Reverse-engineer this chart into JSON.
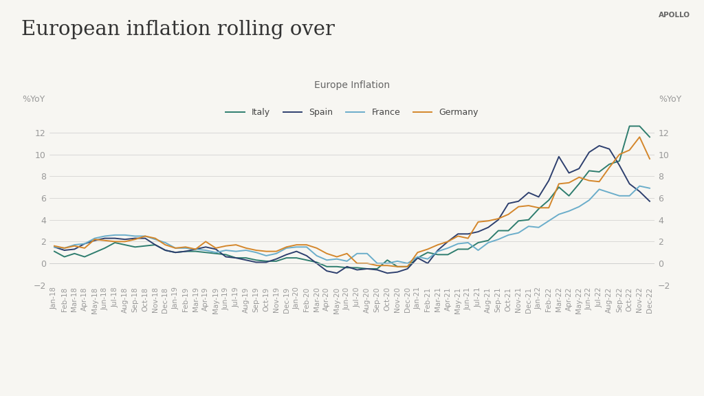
{
  "title": "European inflation rolling over",
  "subtitle": "Europe Inflation",
  "watermark": "APOLLO",
  "ylabel_left": "%YoY",
  "ylabel_right": "%YoY",
  "ylim": [
    -2,
    14
  ],
  "yticks": [
    -2,
    0,
    2,
    4,
    6,
    8,
    10,
    12
  ],
  "background_color": "#f7f6f2",
  "colors": {
    "Italy": "#2e7d6e",
    "Spain": "#2d3f6e",
    "France": "#6aadca",
    "Germany": "#d4862a"
  },
  "labels": [
    "Jan-18",
    "Feb-18",
    "Mar-18",
    "Apr-18",
    "May-18",
    "Jun-18",
    "Jul-18",
    "Aug-18",
    "Sep-18",
    "Oct-18",
    "Nov-18",
    "Dec-18",
    "Jan-19",
    "Feb-19",
    "Mar-19",
    "Apr-19",
    "May-19",
    "Jun-19",
    "Jul-19",
    "Aug-19",
    "Sep-19",
    "Oct-19",
    "Nov-19",
    "Dec-19",
    "Jan-20",
    "Feb-20",
    "Mar-20",
    "Apr-20",
    "May-20",
    "Jun-20",
    "Jul-20",
    "Aug-20",
    "Sep-20",
    "Oct-20",
    "Nov-20",
    "Dec-20",
    "Jan-21",
    "Feb-21",
    "Mar-21",
    "Apr-21",
    "May-21",
    "Jun-21",
    "Jul-21",
    "Aug-21",
    "Sep-21",
    "Oct-21",
    "Nov-21",
    "Dec-21",
    "Jan-22",
    "Feb-22",
    "Mar-22",
    "Apr-22",
    "May-22",
    "Jun-22",
    "Jul-22",
    "Aug-22",
    "Sep-22",
    "Oct-22",
    "Nov-22",
    "Dec-22"
  ],
  "Italy": [
    1.1,
    0.6,
    0.9,
    0.6,
    1.0,
    1.4,
    1.9,
    1.7,
    1.5,
    1.6,
    1.7,
    1.2,
    1.0,
    1.1,
    1.1,
    1.0,
    0.9,
    0.8,
    0.5,
    0.5,
    0.3,
    0.2,
    0.2,
    0.5,
    0.5,
    0.3,
    0.1,
    -0.3,
    -0.3,
    -0.4,
    -0.4,
    -0.5,
    -0.5,
    0.3,
    -0.3,
    -0.3,
    0.5,
    1.0,
    0.8,
    0.8,
    1.3,
    1.3,
    1.9,
    2.1,
    3.0,
    3.0,
    3.9,
    4.0,
    5.0,
    5.8,
    7.0,
    6.2,
    7.3,
    8.5,
    8.4,
    9.1,
    9.4,
    12.6,
    12.6,
    11.6
  ],
  "Spain": [
    1.5,
    1.2,
    1.3,
    1.8,
    2.1,
    2.3,
    2.3,
    2.2,
    2.3,
    2.3,
    1.7,
    1.2,
    1.0,
    1.1,
    1.3,
    1.5,
    1.3,
    0.6,
    0.5,
    0.3,
    0.1,
    0.1,
    0.4,
    0.8,
    1.1,
    0.7,
    0.0,
    -0.7,
    -0.9,
    -0.3,
    -0.6,
    -0.5,
    -0.6,
    -0.9,
    -0.8,
    -0.5,
    0.5,
    0.0,
    1.2,
    2.0,
    2.7,
    2.7,
    2.9,
    3.3,
    4.0,
    5.5,
    5.7,
    6.5,
    6.1,
    7.6,
    9.8,
    8.3,
    8.7,
    10.2,
    10.8,
    10.5,
    9.0,
    7.3,
    6.6,
    5.7
  ],
  "France": [
    1.5,
    1.4,
    1.7,
    1.8,
    2.3,
    2.5,
    2.6,
    2.6,
    2.5,
    2.5,
    2.2,
    1.9,
    1.4,
    1.4,
    1.3,
    1.2,
    1.0,
    1.2,
    1.1,
    1.2,
    1.0,
    0.7,
    0.9,
    1.4,
    1.5,
    1.5,
    0.7,
    0.3,
    0.4,
    0.2,
    0.9,
    0.9,
    0.0,
    0.0,
    0.2,
    0.0,
    0.6,
    0.4,
    1.1,
    1.4,
    1.8,
    1.9,
    1.2,
    1.9,
    2.2,
    2.6,
    2.8,
    3.4,
    3.3,
    3.9,
    4.5,
    4.8,
    5.2,
    5.8,
    6.8,
    6.5,
    6.2,
    6.2,
    7.1,
    6.9
  ],
  "Germany": [
    1.6,
    1.4,
    1.6,
    1.4,
    2.2,
    2.1,
    2.0,
    2.0,
    2.2,
    2.5,
    2.3,
    1.7,
    1.4,
    1.5,
    1.3,
    2.0,
    1.4,
    1.6,
    1.7,
    1.4,
    1.2,
    1.1,
    1.1,
    1.5,
    1.7,
    1.7,
    1.4,
    0.9,
    0.6,
    0.9,
    0.0,
    0.0,
    -0.2,
    -0.2,
    -0.3,
    -0.3,
    1.0,
    1.3,
    1.7,
    2.0,
    2.5,
    2.3,
    3.8,
    3.9,
    4.1,
    4.5,
    5.2,
    5.3,
    5.1,
    5.1,
    7.3,
    7.4,
    7.9,
    7.6,
    7.5,
    8.8,
    10.0,
    10.4,
    11.6,
    9.6
  ]
}
